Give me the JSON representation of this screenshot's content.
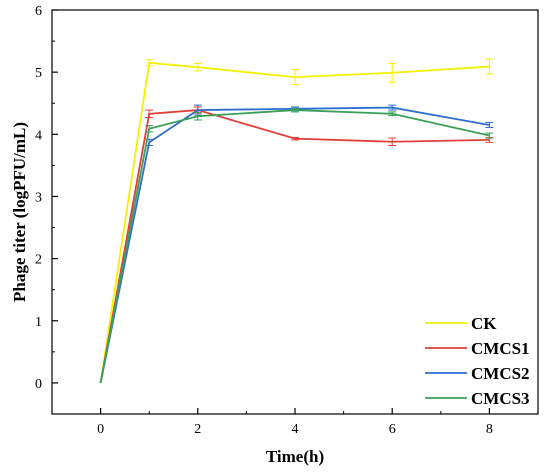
{
  "chart_data": {
    "type": "line",
    "xlabel": "Time(h)",
    "ylabel": "Phage titer (logPFU/mL)",
    "x": [
      0,
      1,
      2,
      4,
      6,
      8
    ],
    "xticks": [
      "0",
      "2",
      "4",
      "6",
      "8"
    ],
    "yticks": [
      "0",
      "1",
      "2",
      "3",
      "4",
      "5",
      "6"
    ],
    "xlim": [
      -1,
      9
    ],
    "ylim": [
      -0.5,
      6
    ],
    "grid": false,
    "legend_position": "bottom-right",
    "series": [
      {
        "name": "CK",
        "color": "#f2f200",
        "values": [
          0,
          5.15,
          5.08,
          4.92,
          4.99,
          5.09
        ],
        "errors": [
          0,
          0.05,
          0.06,
          0.12,
          0.15,
          0.12
        ]
      },
      {
        "name": "CMCS1",
        "color": "#e0403a",
        "values": [
          0,
          4.33,
          4.39,
          3.93,
          3.88,
          3.91
        ],
        "errors": [
          0,
          0.06,
          0.05,
          0.02,
          0.06,
          0.04
        ]
      },
      {
        "name": "CMCS2",
        "color": "#2f6fd0",
        "values": [
          0,
          3.87,
          4.39,
          4.41,
          4.43,
          4.15
        ],
        "errors": [
          0,
          0.05,
          0.08,
          0.03,
          0.04,
          0.04
        ]
      },
      {
        "name": "CMCS3",
        "color": "#3aa05a",
        "values": [
          0,
          4.09,
          4.29,
          4.39,
          4.33,
          3.98
        ],
        "errors": [
          0,
          0.05,
          0.06,
          0.03,
          0.03,
          0.04
        ]
      }
    ]
  }
}
